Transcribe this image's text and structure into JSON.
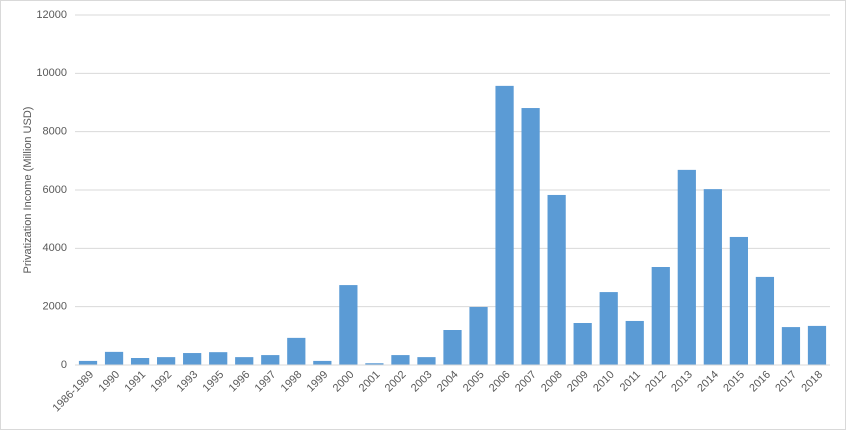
{
  "chart_data": {
    "type": "bar",
    "y_label": "Privatization Income (Million USD)",
    "categories": [
      "1986-1989",
      "1990",
      "1991",
      "1992",
      "1993",
      "1995",
      "1996",
      "1997",
      "1998",
      "1999",
      "2000",
      "2001",
      "2002",
      "2003",
      "2004",
      "2005",
      "2006",
      "2007",
      "2008",
      "2009",
      "2010",
      "2011",
      "2012",
      "2013",
      "2014",
      "2015",
      "2016",
      "2017",
      "2018"
    ],
    "values": [
      140,
      450,
      240,
      270,
      410,
      440,
      270,
      340,
      930,
      140,
      2740,
      60,
      340,
      270,
      1200,
      1990,
      9570,
      8810,
      5830,
      1440,
      2500,
      1510,
      3360,
      6690,
      6030,
      4390,
      3020,
      1300,
      1340
    ],
    "color": "#5b9bd5",
    "ylim": [
      0,
      12000
    ],
    "yticks": [
      0,
      2000,
      4000,
      6000,
      8000,
      10000,
      12000
    ],
    "grid": true
  }
}
